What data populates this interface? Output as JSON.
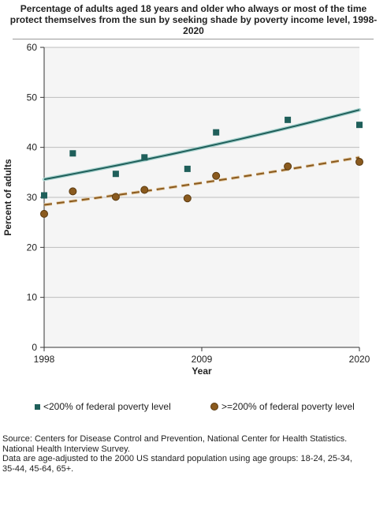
{
  "chart_data": {
    "type": "scatter",
    "title_lines": [
      "Percentage of adults aged 18 years and older who always or most of the time",
      "protect themselves from the sun by seeking shade by poverty income level, 1998-",
      "2020"
    ],
    "xlabel": "Year",
    "ylabel": "Percent of adults",
    "xlim": [
      1998,
      2020
    ],
    "ylim": [
      0,
      60
    ],
    "x_ticks": [
      1998,
      2009,
      2020
    ],
    "y_ticks": [
      0,
      10,
      20,
      30,
      40,
      50,
      60
    ],
    "grid": true,
    "legend_position": "bottom",
    "series": [
      {
        "name": "<200% of federal poverty level",
        "marker": "square",
        "color": "#1f5f5a",
        "x": [
          1998,
          2000,
          2003,
          2005,
          2008,
          2010,
          2015,
          2020
        ],
        "y": [
          30.4,
          38.8,
          34.7,
          38.0,
          35.7,
          43.0,
          45.5,
          44.5
        ],
        "trend": {
          "style": "solid",
          "y_start": 33.6,
          "y_end": 47.5
        }
      },
      {
        "name": ">=200% of federal poverty level",
        "marker": "circle",
        "color": "#8a5a1e",
        "x": [
          1998,
          2000,
          2003,
          2005,
          2008,
          2010,
          2015,
          2020
        ],
        "y": [
          26.7,
          31.2,
          30.1,
          31.5,
          29.8,
          34.3,
          36.2,
          37.1
        ],
        "trend": {
          "style": "dashed",
          "y_start": 28.5,
          "y_end": 38.0
        }
      }
    ]
  },
  "source_lines": [
    "Source: Centers for Disease Control and Prevention, National Center for Health Statistics.",
    "National Health Interview Survey.",
    "Data are age-adjusted to the 2000 US standard population using age groups: 18-24, 25-34,",
    "35-44, 45-64, 65+."
  ]
}
